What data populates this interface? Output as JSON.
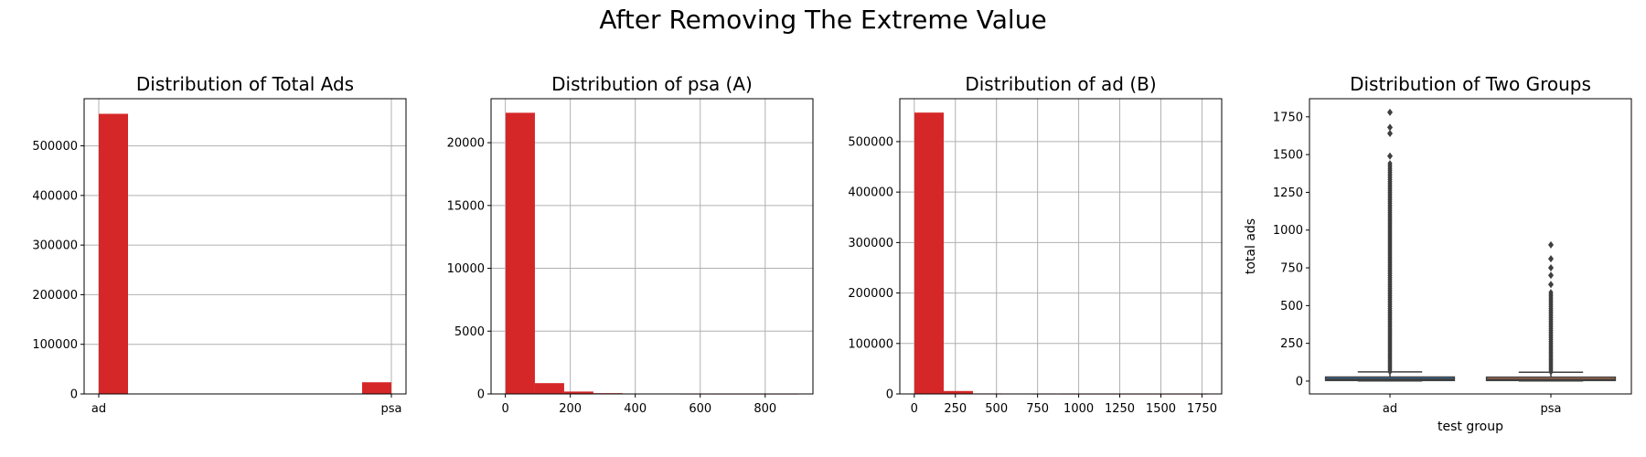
{
  "suptitle": "After Removing The Extreme Value",
  "chart_data": [
    {
      "type": "bar",
      "title": "Distribution of Total Ads",
      "xlabel": "",
      "ylabel": "",
      "x_kind": "categorical",
      "categories": [
        "ad",
        "psa"
      ],
      "bins": [
        {
          "x0": 0.0,
          "x1": 0.1,
          "count": 564577
        },
        {
          "x0": 0.1,
          "x1": 0.2,
          "count": 0
        },
        {
          "x0": 0.2,
          "x1": 0.3,
          "count": 0
        },
        {
          "x0": 0.3,
          "x1": 0.4,
          "count": 0
        },
        {
          "x0": 0.4,
          "x1": 0.5,
          "count": 0
        },
        {
          "x0": 0.5,
          "x1": 0.6,
          "count": 0
        },
        {
          "x0": 0.6,
          "x1": 0.7,
          "count": 0
        },
        {
          "x0": 0.7,
          "x1": 0.8,
          "count": 0
        },
        {
          "x0": 0.8,
          "x1": 0.9,
          "count": 0
        },
        {
          "x0": 0.9,
          "x1": 1.0,
          "count": 23524
        }
      ],
      "xlim": [
        -0.05,
        1.05
      ],
      "ylim": [
        0,
        595000
      ],
      "xticks": [
        0,
        1
      ],
      "xtick_labels": [
        "ad",
        "psa"
      ],
      "yticks": [
        0,
        100000,
        200000,
        300000,
        400000,
        500000
      ],
      "ytick_labels": [
        "0",
        "100000",
        "200000",
        "300000",
        "400000",
        "500000"
      ],
      "grid": true,
      "color": "#d62728"
    },
    {
      "type": "bar",
      "title": "Distribution of psa (A)",
      "xlabel": "",
      "ylabel": "",
      "x_kind": "numeric",
      "bins": [
        {
          "x0": 1,
          "x1": 91,
          "count": 22380
        },
        {
          "x0": 91,
          "x1": 181,
          "count": 860
        },
        {
          "x0": 181,
          "x1": 271,
          "count": 190
        },
        {
          "x0": 271,
          "x1": 361,
          "count": 60
        },
        {
          "x0": 361,
          "x1": 451,
          "count": 20
        },
        {
          "x0": 451,
          "x1": 541,
          "count": 8
        },
        {
          "x0": 541,
          "x1": 631,
          "count": 3
        },
        {
          "x0": 631,
          "x1": 721,
          "count": 1
        },
        {
          "x0": 721,
          "x1": 811,
          "count": 1
        },
        {
          "x0": 811,
          "x1": 902,
          "count": 1
        }
      ],
      "xlim": [
        -44,
        947
      ],
      "ylim": [
        0,
        23500
      ],
      "xticks": [
        0,
        200,
        400,
        600,
        800
      ],
      "xtick_labels": [
        "0",
        "200",
        "400",
        "600",
        "800"
      ],
      "yticks": [
        0,
        5000,
        10000,
        15000,
        20000
      ],
      "ytick_labels": [
        "0",
        "5000",
        "10000",
        "15000",
        "20000"
      ],
      "grid": true,
      "color": "#d62728"
    },
    {
      "type": "bar",
      "title": "Distribution of ad (B)",
      "xlabel": "",
      "ylabel": "",
      "x_kind": "numeric",
      "bins": [
        {
          "x0": 1,
          "x1": 179,
          "count": 557500
        },
        {
          "x0": 179,
          "x1": 357,
          "count": 5800
        },
        {
          "x0": 357,
          "x1": 535,
          "count": 1000
        },
        {
          "x0": 535,
          "x1": 713,
          "count": 250
        },
        {
          "x0": 713,
          "x1": 891,
          "count": 100
        },
        {
          "x0": 891,
          "x1": 1069,
          "count": 40
        },
        {
          "x0": 1069,
          "x1": 1247,
          "count": 15
        },
        {
          "x0": 1247,
          "x1": 1425,
          "count": 8
        },
        {
          "x0": 1425,
          "x1": 1603,
          "count": 3
        },
        {
          "x0": 1603,
          "x1": 1781,
          "count": 2
        }
      ],
      "xlim": [
        -88,
        1870
      ],
      "ylim": [
        0,
        585000
      ],
      "xticks": [
        0,
        250,
        500,
        750,
        1000,
        1250,
        1500,
        1750
      ],
      "xtick_labels": [
        "0",
        "250",
        "500",
        "750",
        "1000",
        "1250",
        "1500",
        "1750"
      ],
      "yticks": [
        0,
        100000,
        200000,
        300000,
        400000,
        500000
      ],
      "ytick_labels": [
        "0",
        "100000",
        "200000",
        "300000",
        "400000",
        "500000"
      ],
      "grid": true,
      "color": "#d62728"
    },
    {
      "type": "box",
      "title": "Distribution of Two Groups",
      "xlabel": "test group",
      "ylabel": "total ads",
      "categories": [
        "ad",
        "psa"
      ],
      "boxes": [
        {
          "group": "ad",
          "q1": 4,
          "median": 13,
          "q3": 27,
          "whisker_low": 1,
          "whisker_high": 61,
          "outlier_range": [
            62,
            1450
          ],
          "extreme_outliers": [
            1490,
            1640,
            1680,
            1780
          ],
          "color": "#3a75b0"
        },
        {
          "group": "psa",
          "q1": 4,
          "median": 12,
          "q3": 26,
          "whisker_low": 1,
          "whisker_high": 59,
          "outlier_range": [
            60,
            590
          ],
          "extreme_outliers": [
            640,
            700,
            750,
            810,
            902
          ],
          "color": "#dd8452"
        }
      ],
      "ylim": [
        -85,
        1870
      ],
      "yticks": [
        0,
        250,
        500,
        750,
        1000,
        1250,
        1500,
        1750
      ],
      "ytick_labels": [
        "0",
        "250",
        "500",
        "750",
        "1000",
        "1250",
        "1500",
        "1750"
      ],
      "grid": false,
      "line_color": "#3f3f3f"
    }
  ]
}
